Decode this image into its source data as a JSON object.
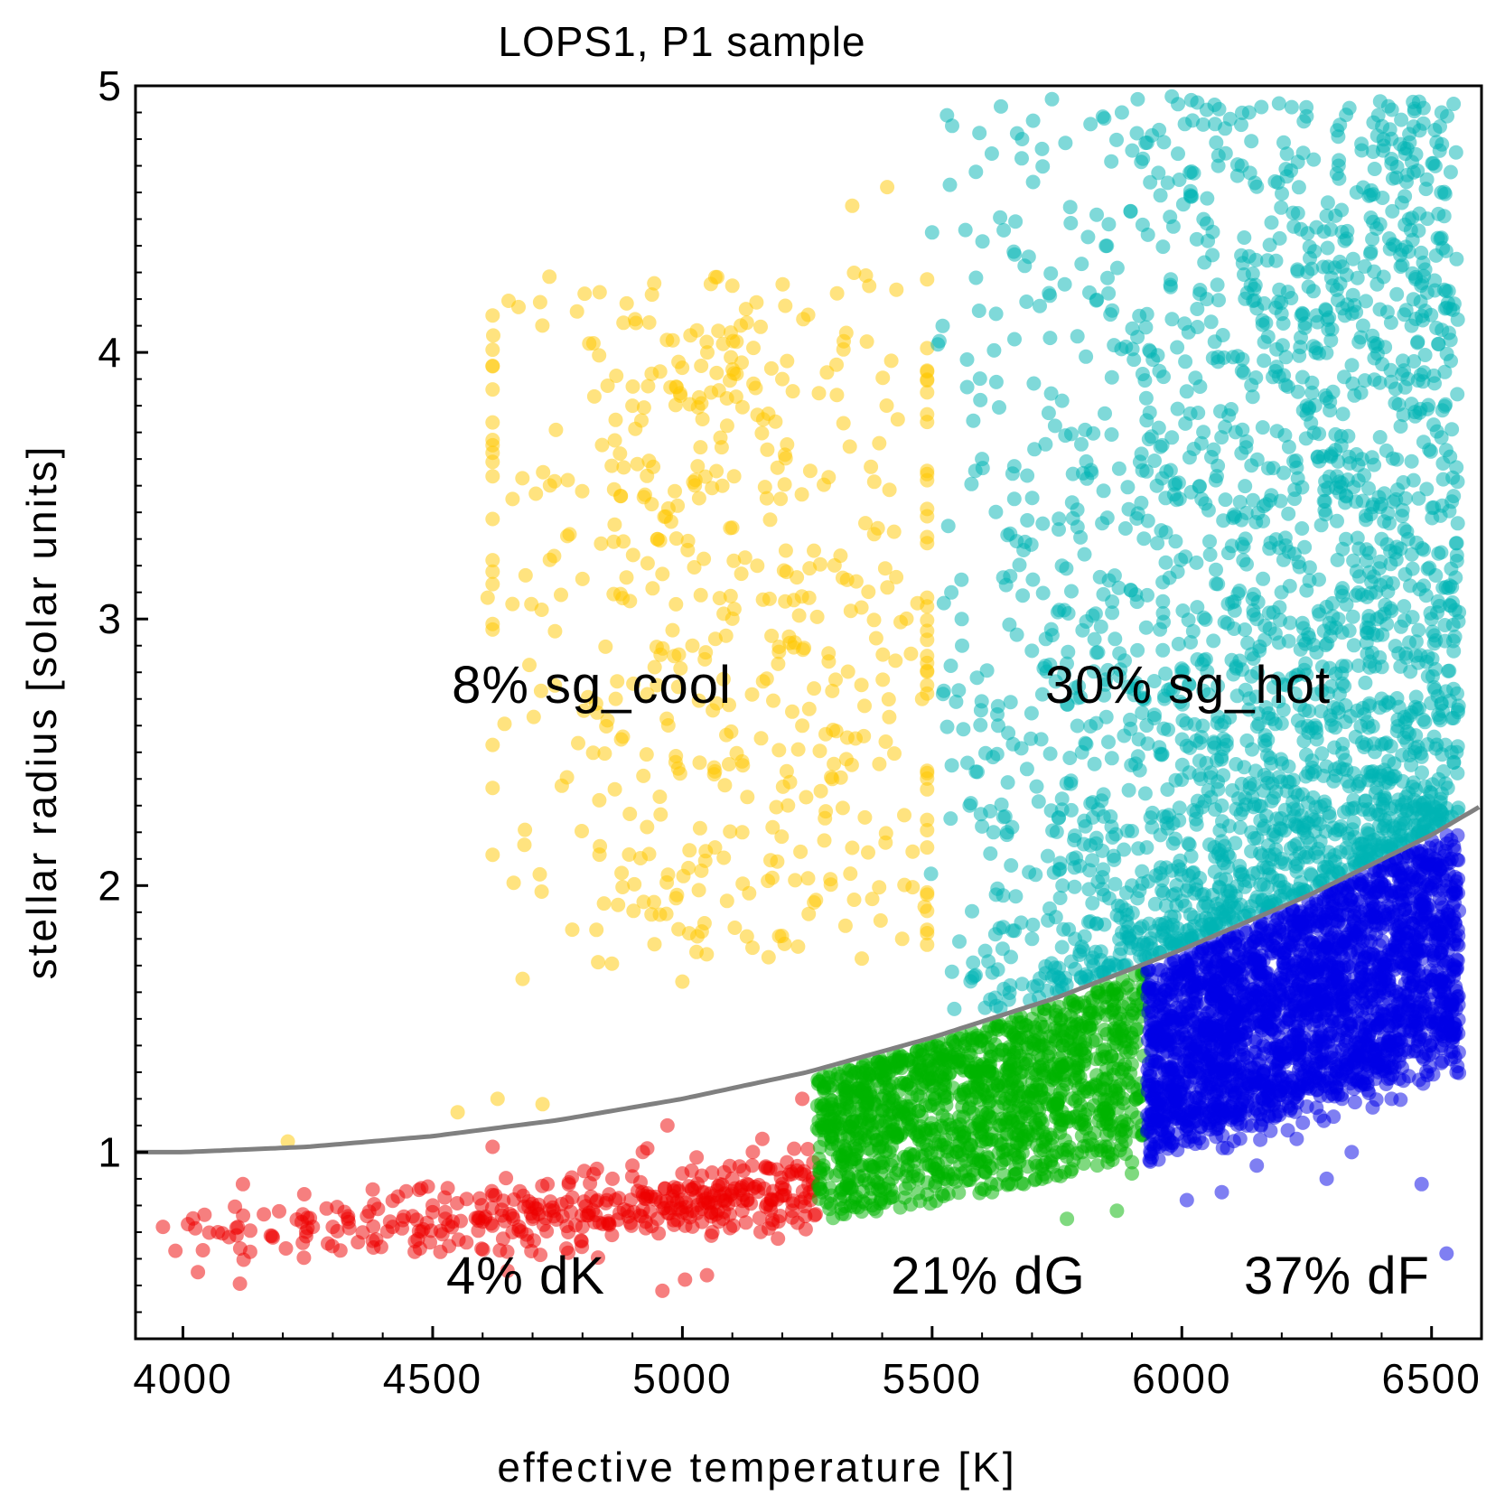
{
  "chart_data": {
    "type": "scatter",
    "title": "LOPS1, P1 sample",
    "xlabel": "effective temperature [K]",
    "ylabel": "stellar radius [solar units]",
    "xlim": [
      3905,
      6600
    ],
    "ylim": [
      0.3,
      5.0
    ],
    "x_ticks": [
      4000,
      4500,
      5000,
      5500,
      6000,
      6500
    ],
    "x_tick_labels": [
      "4000",
      "4500",
      "5000",
      "5500",
      "6000",
      "6500"
    ],
    "y_ticks": [
      1,
      2,
      3,
      4,
      5
    ],
    "y_tick_labels": [
      "1",
      "2",
      "3",
      "4",
      "5"
    ],
    "grid": false,
    "legend": "none",
    "boundary_curve": {
      "description": "grey subgiant/dwarf dividing line",
      "color": "#808080",
      "x": [
        3905,
        4000,
        4250,
        4500,
        4750,
        5000,
        5250,
        5500,
        5750,
        6000,
        6250,
        6500,
        6600
      ],
      "y": [
        1.0,
        1.0,
        1.02,
        1.06,
        1.12,
        1.2,
        1.3,
        1.43,
        1.58,
        1.76,
        1.96,
        2.19,
        2.3
      ]
    },
    "series": [
      {
        "name": "dK",
        "color": "#ee0000",
        "teff_range": [
          3950,
          5270
        ],
        "radius_band": "0.6-1.1",
        "points": [
          [
            3960,
            0.72
          ],
          [
            3985,
            0.63
          ],
          [
            4010,
            0.73
          ],
          [
            4030,
            0.55
          ],
          [
            4070,
            0.7
          ],
          [
            4110,
            0.72
          ],
          [
            4120,
            0.88
          ],
          [
            4180,
            0.68
          ],
          [
            4240,
            0.66
          ],
          [
            4260,
            0.72
          ],
          [
            4300,
            0.72
          ],
          [
            4330,
            0.75
          ],
          [
            4380,
            0.86
          ],
          [
            4420,
            0.72
          ],
          [
            4460,
            0.76
          ],
          [
            4500,
            0.8
          ],
          [
            4540,
            0.74
          ],
          [
            4600,
            0.74
          ],
          [
            4620,
            1.02
          ],
          [
            4660,
            0.7
          ],
          [
            4700,
            0.75
          ],
          [
            4730,
            0.88
          ],
          [
            4760,
            0.76
          ],
          [
            4800,
            0.72
          ],
          [
            4830,
            0.82
          ],
          [
            4860,
            0.9
          ],
          [
            4890,
            0.78
          ],
          [
            4900,
            0.95
          ],
          [
            4920,
            0.85
          ],
          [
            4950,
            0.75
          ],
          [
            4960,
            0.48
          ],
          [
            4970,
            1.1
          ],
          [
            5000,
            0.92
          ],
          [
            5020,
            0.78
          ],
          [
            5040,
            0.85
          ],
          [
            5060,
            0.7
          ],
          [
            5080,
            0.82
          ],
          [
            5100,
            0.9
          ],
          [
            5120,
            0.78
          ],
          [
            5140,
            0.95
          ],
          [
            5160,
            1.05
          ],
          [
            5180,
            0.82
          ],
          [
            5200,
            0.88
          ],
          [
            5220,
            0.78
          ],
          [
            5240,
            1.2
          ],
          [
            5255,
            0.85
          ]
        ]
      },
      {
        "name": "dG",
        "color": "#00b400",
        "teff_range": [
          5270,
          5930
        ],
        "radius_band": "0.7-1.7",
        "points": [
          [
            5280,
            0.85
          ],
          [
            5300,
            1.25
          ],
          [
            5320,
            0.95
          ],
          [
            5350,
            1.05
          ],
          [
            5380,
            0.8
          ],
          [
            5400,
            1.2
          ],
          [
            5420,
            0.9
          ],
          [
            5460,
            1.1
          ],
          [
            5500,
            0.95
          ],
          [
            5520,
            1.3
          ],
          [
            5550,
            1.0
          ],
          [
            5580,
            1.4
          ],
          [
            5600,
            1.15
          ],
          [
            5620,
            0.85
          ],
          [
            5650,
            1.3
          ],
          [
            5680,
            1.05
          ],
          [
            5700,
            1.5
          ],
          [
            5720,
            0.9
          ],
          [
            5750,
            1.2
          ],
          [
            5770,
            0.75
          ],
          [
            5780,
            1.45
          ],
          [
            5800,
            1.0
          ],
          [
            5830,
            1.6
          ],
          [
            5850,
            1.15
          ],
          [
            5870,
            0.78
          ],
          [
            5880,
            1.3
          ],
          [
            5900,
            0.92
          ],
          [
            5910,
            1.55
          ],
          [
            5920,
            1.1
          ]
        ]
      },
      {
        "name": "dF",
        "color": "#0000e6",
        "teff_range": [
          5930,
          6560
        ],
        "radius_band": "0.6-2.2",
        "points": [
          [
            5950,
            1.2
          ],
          [
            6000,
            1.5
          ],
          [
            6010,
            0.82
          ],
          [
            6050,
            1.35
          ],
          [
            6080,
            0.85
          ],
          [
            6100,
            1.7
          ],
          [
            6130,
            1.1
          ],
          [
            6150,
            0.95
          ],
          [
            6170,
            1.9
          ],
          [
            6200,
            1.4
          ],
          [
            6230,
            1.05
          ],
          [
            6260,
            1.65
          ],
          [
            6290,
            0.9
          ],
          [
            6310,
            1.3
          ],
          [
            6340,
            1.0
          ],
          [
            6360,
            2.0
          ],
          [
            6390,
            1.5
          ],
          [
            6420,
            1.2
          ],
          [
            6450,
            1.8
          ],
          [
            6480,
            0.88
          ],
          [
            6500,
            1.6
          ],
          [
            6520,
            1.4
          ],
          [
            6530,
            0.62
          ],
          [
            6540,
            2.1
          ],
          [
            6550,
            1.3
          ]
        ]
      },
      {
        "name": "sg_cool",
        "color": "#ffc800",
        "teff_range": [
          4200,
          5500
        ],
        "radius_band": "1.0-4.6",
        "points": [
          [
            4210,
            1.04
          ],
          [
            4550,
            1.15
          ],
          [
            4630,
            1.2
          ],
          [
            4610,
            3.08
          ],
          [
            4660,
            3.45
          ],
          [
            4680,
            1.65
          ],
          [
            4720,
            1.18
          ],
          [
            4800,
            3.15
          ],
          [
            4850,
            2.62
          ],
          [
            4900,
            3.8
          ],
          [
            4950,
            3.3
          ],
          [
            5000,
            1.64
          ],
          [
            5020,
            2.9
          ],
          [
            5050,
            4.0
          ],
          [
            5080,
            3.5
          ],
          [
            5100,
            4.25
          ],
          [
            5120,
            2.2
          ],
          [
            5150,
            3.2
          ],
          [
            5200,
            3.9
          ],
          [
            5240,
            2.6
          ],
          [
            5300,
            2.4
          ],
          [
            5340,
            4.55
          ],
          [
            5380,
            1.95
          ],
          [
            5410,
            4.62
          ],
          [
            5440,
            1.8
          ],
          [
            5480,
            2.7
          ],
          [
            5490,
            3.85
          ]
        ]
      },
      {
        "name": "sg_hot",
        "color": "#00b4b4",
        "teff_range": [
          5480,
          6560
        ],
        "radius_band": "1.5-5.0",
        "points": [
          [
            5500,
            4.45
          ],
          [
            5540,
            4.85
          ],
          [
            5560,
            2.9
          ],
          [
            5600,
            3.6
          ],
          [
            5650,
            2.2
          ],
          [
            5680,
            4.8
          ],
          [
            5700,
            1.8
          ],
          [
            5740,
            4.95
          ],
          [
            5760,
            3.2
          ],
          [
            5800,
            2.5
          ],
          [
            5850,
            4.4
          ],
          [
            5880,
            4.9
          ],
          [
            5900,
            2.0
          ],
          [
            5950,
            3.5
          ],
          [
            5980,
            4.96
          ],
          [
            6000,
            2.8
          ],
          [
            6050,
            4.2
          ],
          [
            6080,
            2.3
          ],
          [
            6120,
            4.7
          ],
          [
            6150,
            3.0
          ],
          [
            6200,
            2.1
          ],
          [
            6220,
            4.92
          ],
          [
            6250,
            3.8
          ],
          [
            6300,
            2.6
          ],
          [
            6350,
            4.6
          ],
          [
            6400,
            3.3
          ],
          [
            6420,
            2.4
          ],
          [
            6460,
            4.1
          ],
          [
            6500,
            3.0
          ],
          [
            6520,
            4.9
          ],
          [
            6540,
            2.5
          ],
          [
            6550,
            4.35
          ]
        ]
      }
    ],
    "annotations": [
      {
        "text": "8% sg_cool",
        "x": 5000,
        "y": 2.7
      },
      {
        "text": "30% sg_hot",
        "x": 6025,
        "y": 2.7
      },
      {
        "text": "4% dK",
        "x": 4685,
        "y": 0.55
      },
      {
        "text": "21% dG",
        "x": 5715,
        "y": 0.55
      },
      {
        "text": "37% dF",
        "x": 6385,
        "y": 0.55
      }
    ]
  }
}
